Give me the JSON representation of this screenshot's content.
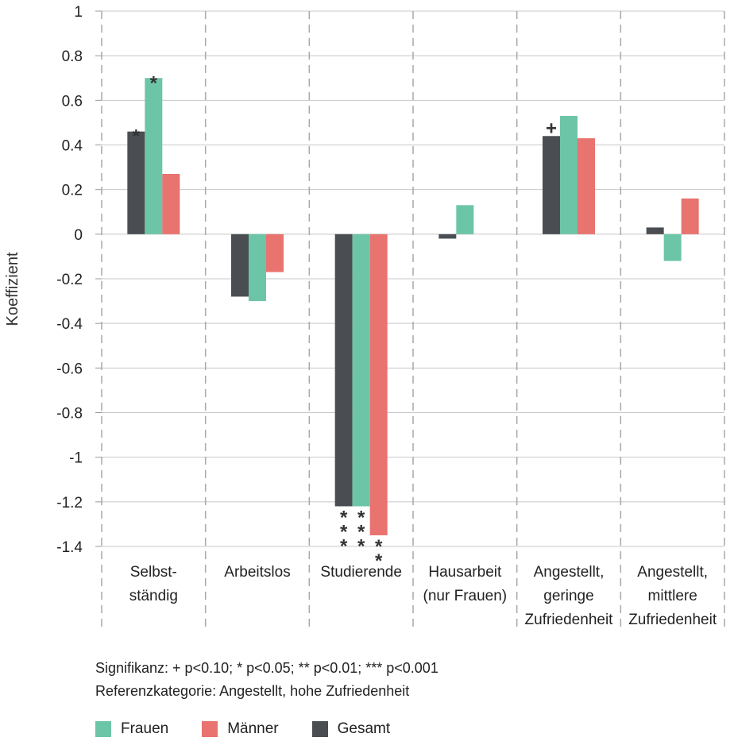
{
  "chart_data": {
    "type": "bar",
    "ylabel": "Koeffizient",
    "ylim": [
      -1.4,
      1
    ],
    "yticks": [
      1,
      0.8,
      0.6,
      0.4,
      0.2,
      0,
      -0.2,
      -0.4,
      -0.6,
      -0.8,
      -1,
      -1.2,
      -1.4
    ],
    "ytick_labels": [
      "1",
      "0.8",
      "0.6",
      "0.4",
      "0.2",
      "0",
      "-0.2",
      "-0.4",
      "-0.6",
      "-0.8",
      "-1",
      "-1.2",
      "-1.4"
    ],
    "grid": true,
    "categories": [
      [
        "Selbst-",
        "ständig"
      ],
      [
        "Arbeitslos"
      ],
      [
        "Studierende"
      ],
      [
        "Hausarbeit",
        "(nur Frauen)"
      ],
      [
        "Angestellt,",
        "geringe",
        "Zufriedenheit"
      ],
      [
        "Angestellt,",
        "mittlere",
        "Zufriedenheit"
      ]
    ],
    "series": [
      {
        "name": "Gesamt",
        "color": "#4a4e52",
        "values": [
          0.46,
          -0.28,
          -1.22,
          -0.02,
          0.44,
          0.03
        ],
        "significance": [
          "*",
          "",
          "***",
          "",
          "+",
          ""
        ]
      },
      {
        "name": "Frauen",
        "color": "#6cc5a6",
        "values": [
          0.7,
          -0.3,
          -1.22,
          0.13,
          0.53,
          -0.12
        ],
        "significance": [
          "*",
          "",
          "***",
          "",
          "",
          ""
        ]
      },
      {
        "name": "Männer",
        "color": "#e8736f",
        "values": [
          0.27,
          -0.17,
          -1.35,
          null,
          0.43,
          0.16
        ],
        "significance": [
          "",
          "",
          "**",
          "",
          "",
          ""
        ]
      }
    ],
    "legend_order": [
      "Frauen",
      "Männer",
      "Gesamt"
    ],
    "legend_position": "bottom-left"
  },
  "notes": {
    "significance": "Signifikanz: + p<0.10; * p<0.05; ** p<0.01; *** p<0.001",
    "reference": "Referenzkategorie: Angestellt, hohe Zufriedenheit"
  }
}
